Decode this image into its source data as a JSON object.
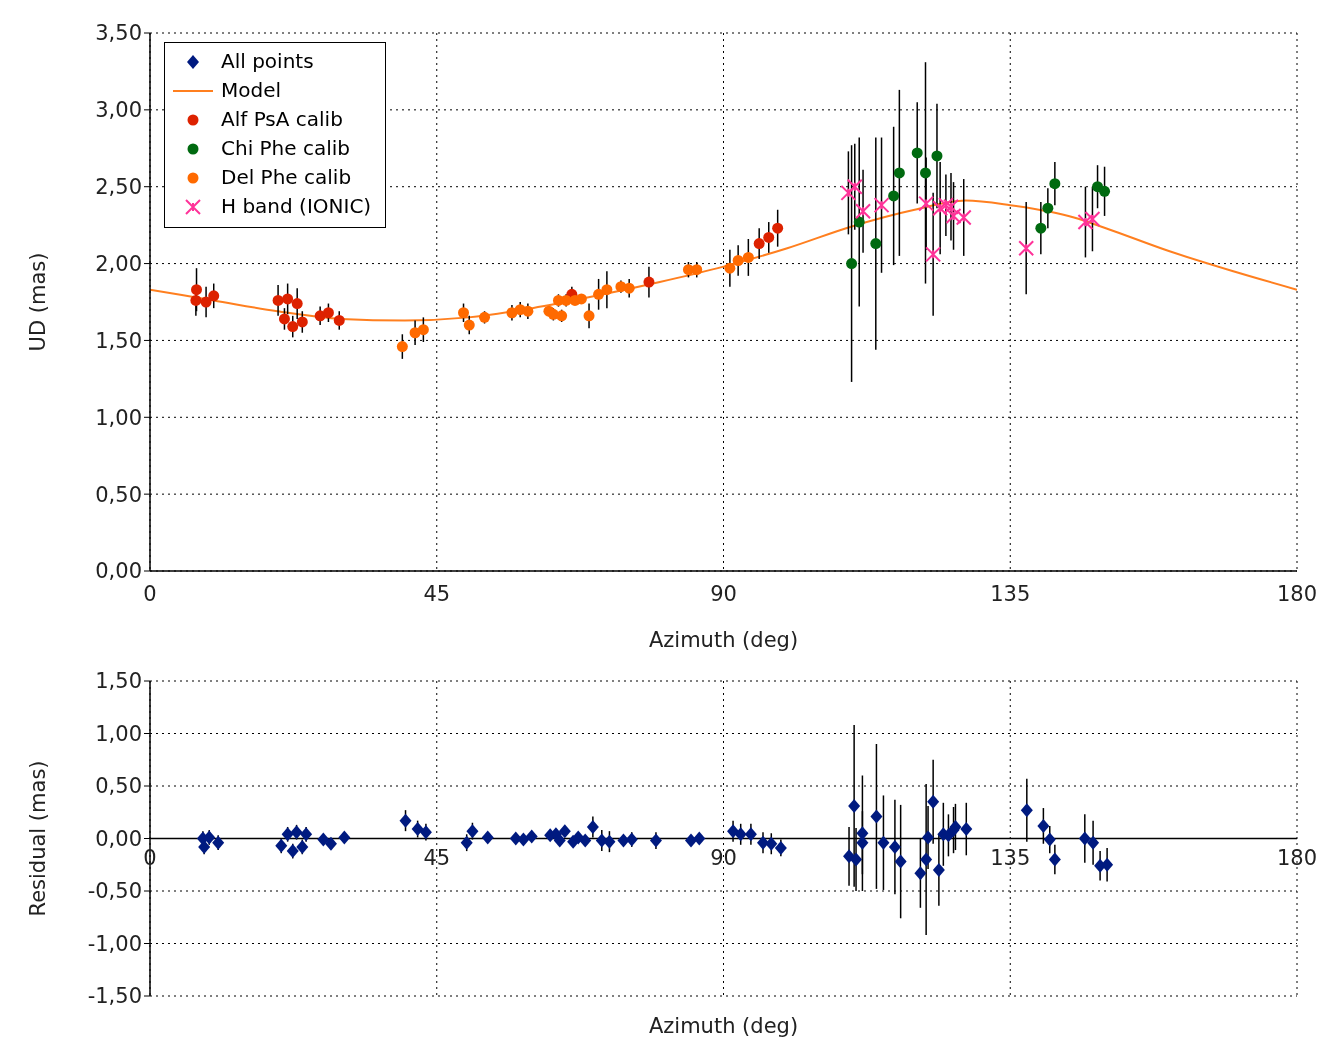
{
  "chart_data": [
    {
      "type": "scatter",
      "xlabel": "Azimuth (deg)",
      "ylabel": "UD (mas)",
      "xlim": [
        0,
        180
      ],
      "xticks": [
        0,
        45,
        90,
        135,
        180
      ],
      "ylim": [
        0,
        3.5
      ],
      "yticks": [
        {
          "value": 0,
          "label": "0,00"
        },
        {
          "value": 0.5,
          "label": "0,50"
        },
        {
          "value": 1,
          "label": "1,00"
        },
        {
          "value": 1.5,
          "label": "1,50"
        },
        {
          "value": 2,
          "label": "2,00"
        },
        {
          "value": 2.5,
          "label": "2,50"
        },
        {
          "value": 3,
          "label": "3,00"
        },
        {
          "value": 3.5,
          "label": "3,50"
        }
      ],
      "grid": true,
      "legend": "top left",
      "series": [
        {
          "name": "Model",
          "type": "line",
          "marker": "none",
          "color": "#ff7f1f",
          "x": [
            0,
            10,
            20,
            30,
            40,
            50,
            60,
            70,
            80,
            90,
            100,
            110,
            120,
            128,
            135,
            145,
            150,
            160,
            170,
            180
          ],
          "values": [
            1.83,
            1.76,
            1.69,
            1.64,
            1.63,
            1.65,
            1.71,
            1.79,
            1.88,
            1.98,
            2.1,
            2.24,
            2.35,
            2.41,
            2.38,
            2.3,
            2.23,
            2.08,
            1.95,
            1.83
          ]
        },
        {
          "name": "Alf PsA calib",
          "marker": "circle",
          "color": "#dd2200",
          "x": [
            7.3,
            7.2,
            8.8,
            10.0,
            20.1,
            21.6,
            23.1,
            21.1,
            22.4,
            23.9,
            26.7,
            28.0,
            29.7,
            66.2,
            78.3,
            95.6,
            97.1,
            98.5
          ],
          "values": [
            1.83,
            1.76,
            1.75,
            1.79,
            1.76,
            1.77,
            1.74,
            1.64,
            1.59,
            1.62,
            1.66,
            1.68,
            1.63,
            1.8,
            1.88,
            2.13,
            2.17,
            2.23
          ],
          "errors": [
            0.14,
            0.1,
            0.1,
            0.08,
            0.1,
            0.1,
            0.1,
            0.07,
            0.07,
            0.07,
            0.06,
            0.06,
            0.06,
            0.05,
            0.1,
            0.1,
            0.1,
            0.12
          ]
        },
        {
          "name": "Chi Phe calib",
          "marker": "circle",
          "color": "#006a10",
          "x": [
            110.1,
            111.3,
            113.9,
            116.7,
            117.6,
            120.4,
            121.7,
            123.5,
            139.8,
            140.9,
            142.0,
            148.7,
            149.8
          ],
          "values": [
            2.0,
            2.27,
            2.13,
            2.44,
            2.59,
            2.72,
            2.59,
            2.7,
            2.23,
            2.36,
            2.52,
            2.5,
            2.47
          ],
          "errors": [
            0.77,
            0.55,
            0.69,
            0.45,
            0.54,
            0.33,
            0.72,
            0.34,
            0.17,
            0.13,
            0.14,
            0.14,
            0.16
          ]
        },
        {
          "name": "Del Phe calib",
          "marker": "circle",
          "color": "#ff6a00",
          "x": [
            39.6,
            41.6,
            42.9,
            49.2,
            50.1,
            52.5,
            56.8,
            58.1,
            59.3,
            62.6,
            63.3,
            64.6,
            64.1,
            65.3,
            66.7,
            67.7,
            68.9,
            70.4,
            71.7,
            73.9,
            75.2,
            84.5,
            85.8,
            91.0,
            92.3,
            93.9
          ],
          "values": [
            1.46,
            1.55,
            1.57,
            1.68,
            1.6,
            1.65,
            1.68,
            1.7,
            1.69,
            1.69,
            1.67,
            1.66,
            1.76,
            1.76,
            1.76,
            1.77,
            1.66,
            1.8,
            1.83,
            1.85,
            1.84,
            1.96,
            1.96,
            1.97,
            2.02,
            2.04
          ],
          "errors": [
            0.08,
            0.08,
            0.08,
            0.06,
            0.06,
            0.04,
            0.05,
            0.05,
            0.05,
            null,
            0.04,
            0.04,
            0.04,
            0.04,
            null,
            null,
            0.08,
            0.1,
            0.12,
            0.04,
            0.06,
            0.05,
            0.05,
            0.12,
            0.1,
            0.12
          ]
        },
        {
          "name": "H band (IONIC)",
          "marker": "cross",
          "color": "#ff3399",
          "x": [
            109.6,
            110.6,
            111.9,
            114.8,
            121.8,
            122.9,
            124.0,
            124.9,
            125.7,
            126.1,
            127.7,
            137.5,
            146.8,
            147.9
          ],
          "values": [
            2.46,
            2.5,
            2.34,
            2.38,
            2.39,
            2.06,
            2.36,
            2.38,
            2.37,
            2.31,
            2.3,
            2.1,
            2.27,
            2.29
          ],
          "errors": [
            0.27,
            0.28,
            0.27,
            0.44,
            0.3,
            0.4,
            0.3,
            0.2,
            0.22,
            0.22,
            0.25,
            0.3,
            0.23,
            0.21
          ]
        }
      ]
    },
    {
      "type": "scatter",
      "xlabel": "Azimuth (deg)",
      "ylabel": "Residual (mas)",
      "xlim": [
        0,
        180
      ],
      "xticks": [
        0,
        45,
        90,
        135,
        180
      ],
      "ylim": [
        -1.5,
        1.5
      ],
      "yticks": [
        {
          "value": -1.5,
          "label": "-1,50"
        },
        {
          "value": -1,
          "label": "-1,00"
        },
        {
          "value": -0.5,
          "label": "-0,50"
        },
        {
          "value": 0,
          "label": "0,00"
        },
        {
          "value": 0.5,
          "label": "0,50"
        },
        {
          "value": 1,
          "label": "1,00"
        },
        {
          "value": 1.5,
          "label": "1,50"
        }
      ],
      "grid": true,
      "series": [
        {
          "name": "All points",
          "marker": "diamond",
          "color": "#001a80",
          "x": [
            8.3,
            8.5,
            9.3,
            10.7,
            20.6,
            21.6,
            22.4,
            23.0,
            23.9,
            24.5,
            27.2,
            28.4,
            30.5,
            40.1,
            42.0,
            43.3,
            49.7,
            50.6,
            53.0,
            57.4,
            58.6,
            59.9,
            62.8,
            63.7,
            64.3,
            65.1,
            66.4,
            67.2,
            68.3,
            69.5,
            70.9,
            72.1,
            74.3,
            75.6,
            79.4,
            84.9,
            86.2,
            91.5,
            92.7,
            94.3,
            96.2,
            97.5,
            99.0,
            109.7,
            110.5,
            110.8,
            111.8,
            111.8,
            114.0,
            115.1,
            116.9,
            117.8,
            120.9,
            121.8,
            122.1,
            122.9,
            123.8,
            124.5,
            125.3,
            126.1,
            126.4,
            128.1,
            137.6,
            140.2,
            141.2,
            142.0,
            146.7,
            148.0,
            149.1,
            150.2
          ],
          "values": [
            0.0,
            -0.08,
            0.01,
            -0.04,
            -0.07,
            0.04,
            -0.12,
            0.06,
            -0.08,
            0.04,
            -0.01,
            -0.05,
            0.01,
            0.17,
            0.09,
            0.06,
            -0.04,
            0.07,
            0.01,
            0.0,
            -0.01,
            0.02,
            0.03,
            0.04,
            -0.02,
            0.07,
            -0.03,
            0.01,
            -0.02,
            0.11,
            -0.02,
            -0.03,
            -0.02,
            -0.01,
            -0.02,
            -0.02,
            0.0,
            0.07,
            0.04,
            0.04,
            -0.04,
            -0.05,
            -0.09,
            -0.17,
            0.31,
            -0.2,
            0.05,
            -0.04,
            0.21,
            -0.04,
            -0.08,
            -0.22,
            -0.33,
            -0.2,
            0.01,
            0.35,
            -0.3,
            0.04,
            0.03,
            0.08,
            0.11,
            0.09,
            0.27,
            0.12,
            -0.01,
            -0.2,
            0.0,
            -0.04,
            -0.26,
            -0.25
          ],
          "errors": [
            0.07,
            0.07,
            0.07,
            0.07,
            0.07,
            0.07,
            0.07,
            0.07,
            0.07,
            0.07,
            null,
            null,
            null,
            0.1,
            0.08,
            0.08,
            0.08,
            0.08,
            null,
            null,
            null,
            null,
            null,
            null,
            null,
            0.05,
            null,
            null,
            null,
            0.1,
            0.1,
            0.1,
            null,
            0.07,
            0.08,
            null,
            null,
            0.1,
            0.1,
            0.1,
            0.1,
            0.1,
            0.08,
            0.28,
            0.77,
            0.3,
            0.55,
            0.3,
            0.69,
            0.45,
            0.45,
            0.54,
            0.33,
            0.72,
            0.3,
            0.4,
            0.34,
            0.3,
            0.2,
            0.22,
            0.22,
            0.25,
            0.3,
            0.17,
            0.13,
            0.14,
            0.23,
            0.21,
            0.14,
            0.16
          ]
        }
      ]
    }
  ]
}
